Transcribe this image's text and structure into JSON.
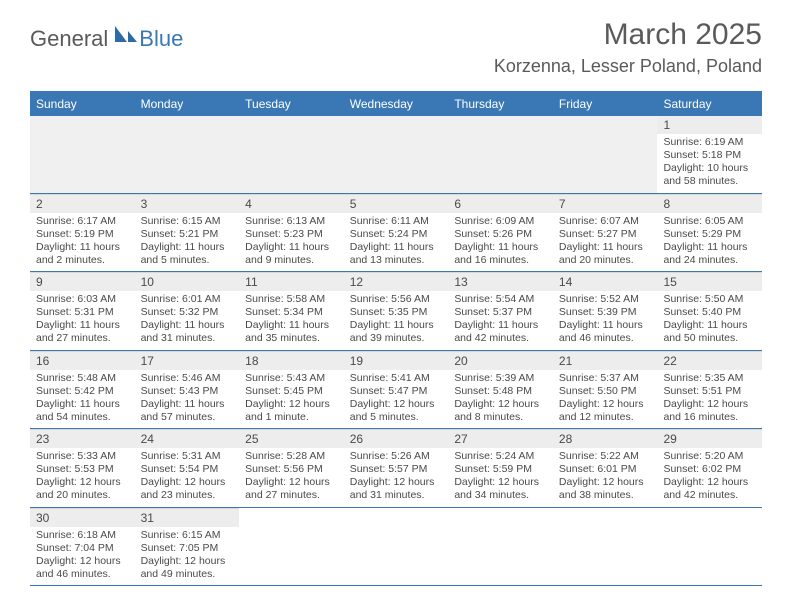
{
  "brand": {
    "part1": "General",
    "part2": "Blue"
  },
  "title": "March 2025",
  "location": "Korzenna, Lesser Poland, Poland",
  "colors": {
    "accent": "#3a78b5",
    "header_bg": "#3a78b5",
    "header_text": "#ffffff",
    "daynum_bg": "#ededed",
    "text": "#4a4a4a",
    "page_bg": "#ffffff",
    "row_border": "#3a78b5"
  },
  "typography": {
    "title_fontsize": 30,
    "location_fontsize": 18,
    "dayheader_fontsize": 12,
    "daynum_fontsize": 12,
    "body_fontsize": 10.5
  },
  "day_labels": [
    "Sunday",
    "Monday",
    "Tuesday",
    "Wednesday",
    "Thursday",
    "Friday",
    "Saturday"
  ],
  "weeks": [
    {
      "blank_before": 6,
      "days": [
        {
          "n": "1",
          "sr": "Sunrise: 6:19 AM",
          "ss": "Sunset: 5:18 PM",
          "dl": "Daylight: 10 hours and 58 minutes."
        }
      ]
    },
    {
      "blank_before": 0,
      "days": [
        {
          "n": "2",
          "sr": "Sunrise: 6:17 AM",
          "ss": "Sunset: 5:19 PM",
          "dl": "Daylight: 11 hours and 2 minutes."
        },
        {
          "n": "3",
          "sr": "Sunrise: 6:15 AM",
          "ss": "Sunset: 5:21 PM",
          "dl": "Daylight: 11 hours and 5 minutes."
        },
        {
          "n": "4",
          "sr": "Sunrise: 6:13 AM",
          "ss": "Sunset: 5:23 PM",
          "dl": "Daylight: 11 hours and 9 minutes."
        },
        {
          "n": "5",
          "sr": "Sunrise: 6:11 AM",
          "ss": "Sunset: 5:24 PM",
          "dl": "Daylight: 11 hours and 13 minutes."
        },
        {
          "n": "6",
          "sr": "Sunrise: 6:09 AM",
          "ss": "Sunset: 5:26 PM",
          "dl": "Daylight: 11 hours and 16 minutes."
        },
        {
          "n": "7",
          "sr": "Sunrise: 6:07 AM",
          "ss": "Sunset: 5:27 PM",
          "dl": "Daylight: 11 hours and 20 minutes."
        },
        {
          "n": "8",
          "sr": "Sunrise: 6:05 AM",
          "ss": "Sunset: 5:29 PM",
          "dl": "Daylight: 11 hours and 24 minutes."
        }
      ]
    },
    {
      "blank_before": 0,
      "days": [
        {
          "n": "9",
          "sr": "Sunrise: 6:03 AM",
          "ss": "Sunset: 5:31 PM",
          "dl": "Daylight: 11 hours and 27 minutes."
        },
        {
          "n": "10",
          "sr": "Sunrise: 6:01 AM",
          "ss": "Sunset: 5:32 PM",
          "dl": "Daylight: 11 hours and 31 minutes."
        },
        {
          "n": "11",
          "sr": "Sunrise: 5:58 AM",
          "ss": "Sunset: 5:34 PM",
          "dl": "Daylight: 11 hours and 35 minutes."
        },
        {
          "n": "12",
          "sr": "Sunrise: 5:56 AM",
          "ss": "Sunset: 5:35 PM",
          "dl": "Daylight: 11 hours and 39 minutes."
        },
        {
          "n": "13",
          "sr": "Sunrise: 5:54 AM",
          "ss": "Sunset: 5:37 PM",
          "dl": "Daylight: 11 hours and 42 minutes."
        },
        {
          "n": "14",
          "sr": "Sunrise: 5:52 AM",
          "ss": "Sunset: 5:39 PM",
          "dl": "Daylight: 11 hours and 46 minutes."
        },
        {
          "n": "15",
          "sr": "Sunrise: 5:50 AM",
          "ss": "Sunset: 5:40 PM",
          "dl": "Daylight: 11 hours and 50 minutes."
        }
      ]
    },
    {
      "blank_before": 0,
      "days": [
        {
          "n": "16",
          "sr": "Sunrise: 5:48 AM",
          "ss": "Sunset: 5:42 PM",
          "dl": "Daylight: 11 hours and 54 minutes."
        },
        {
          "n": "17",
          "sr": "Sunrise: 5:46 AM",
          "ss": "Sunset: 5:43 PM",
          "dl": "Daylight: 11 hours and 57 minutes."
        },
        {
          "n": "18",
          "sr": "Sunrise: 5:43 AM",
          "ss": "Sunset: 5:45 PM",
          "dl": "Daylight: 12 hours and 1 minute."
        },
        {
          "n": "19",
          "sr": "Sunrise: 5:41 AM",
          "ss": "Sunset: 5:47 PM",
          "dl": "Daylight: 12 hours and 5 minutes."
        },
        {
          "n": "20",
          "sr": "Sunrise: 5:39 AM",
          "ss": "Sunset: 5:48 PM",
          "dl": "Daylight: 12 hours and 8 minutes."
        },
        {
          "n": "21",
          "sr": "Sunrise: 5:37 AM",
          "ss": "Sunset: 5:50 PM",
          "dl": "Daylight: 12 hours and 12 minutes."
        },
        {
          "n": "22",
          "sr": "Sunrise: 5:35 AM",
          "ss": "Sunset: 5:51 PM",
          "dl": "Daylight: 12 hours and 16 minutes."
        }
      ]
    },
    {
      "blank_before": 0,
      "days": [
        {
          "n": "23",
          "sr": "Sunrise: 5:33 AM",
          "ss": "Sunset: 5:53 PM",
          "dl": "Daylight: 12 hours and 20 minutes."
        },
        {
          "n": "24",
          "sr": "Sunrise: 5:31 AM",
          "ss": "Sunset: 5:54 PM",
          "dl": "Daylight: 12 hours and 23 minutes."
        },
        {
          "n": "25",
          "sr": "Sunrise: 5:28 AM",
          "ss": "Sunset: 5:56 PM",
          "dl": "Daylight: 12 hours and 27 minutes."
        },
        {
          "n": "26",
          "sr": "Sunrise: 5:26 AM",
          "ss": "Sunset: 5:57 PM",
          "dl": "Daylight: 12 hours and 31 minutes."
        },
        {
          "n": "27",
          "sr": "Sunrise: 5:24 AM",
          "ss": "Sunset: 5:59 PM",
          "dl": "Daylight: 12 hours and 34 minutes."
        },
        {
          "n": "28",
          "sr": "Sunrise: 5:22 AM",
          "ss": "Sunset: 6:01 PM",
          "dl": "Daylight: 12 hours and 38 minutes."
        },
        {
          "n": "29",
          "sr": "Sunrise: 5:20 AM",
          "ss": "Sunset: 6:02 PM",
          "dl": "Daylight: 12 hours and 42 minutes."
        }
      ]
    },
    {
      "blank_before": 0,
      "days": [
        {
          "n": "30",
          "sr": "Sunrise: 6:18 AM",
          "ss": "Sunset: 7:04 PM",
          "dl": "Daylight: 12 hours and 46 minutes."
        },
        {
          "n": "31",
          "sr": "Sunrise: 6:15 AM",
          "ss": "Sunset: 7:05 PM",
          "dl": "Daylight: 12 hours and 49 minutes."
        }
      ],
      "blank_after": 5
    }
  ]
}
